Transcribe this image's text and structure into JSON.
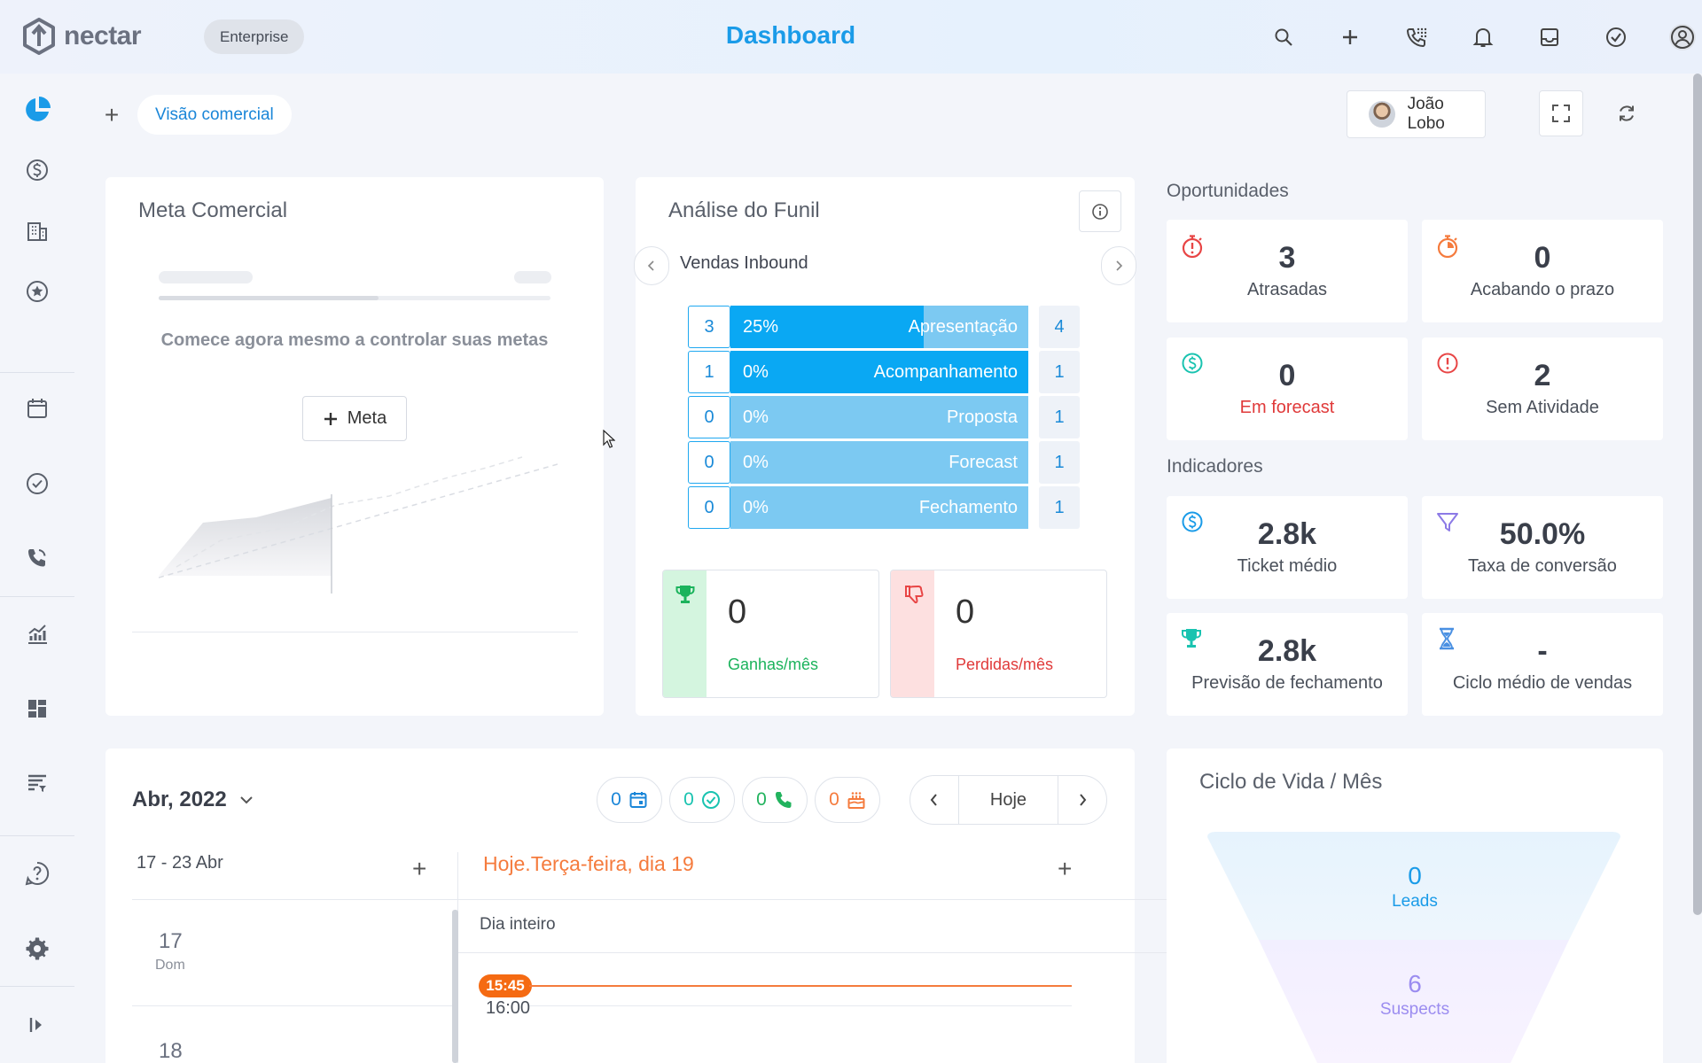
{
  "app": {
    "logo_text": "nectar",
    "plan_badge": "Enterprise",
    "page_title": "Dashboard"
  },
  "top_icons": [
    "search-icon",
    "plus-icon",
    "phone-dialer-icon",
    "bell-icon",
    "inbox-icon",
    "check-circle-icon",
    "user-circle-icon"
  ],
  "sidebar": {
    "items": [
      "pie-chart-icon",
      "dollar-icon",
      "building-icon",
      "star-icon",
      "calendar-icon",
      "check-circle-icon",
      "phone-icon",
      "trend-chart-icon",
      "dashboard-icon",
      "filter-list-icon",
      "help-icon",
      "gear-icon",
      "collapse-icon"
    ]
  },
  "tabs": {
    "active": "Visão comercial"
  },
  "user": {
    "name": "João Lobo"
  },
  "meta_comercial": {
    "title": "Meta Comercial",
    "empty_text": "Comece agora mesmo a controlar suas metas",
    "button": "Meta"
  },
  "funil": {
    "title": "Análise do Funil",
    "pipeline": "Vendas Inbound",
    "stages": [
      {
        "count": "3",
        "pct": "25%",
        "fill": 0.65,
        "name": "Apresentação",
        "total": "4"
      },
      {
        "count": "1",
        "pct": "0%",
        "fill": 1.0,
        "name": "Acompanhamento",
        "total": "1"
      },
      {
        "count": "0",
        "pct": "0%",
        "fill": 0,
        "name": "Proposta",
        "total": "1"
      },
      {
        "count": "0",
        "pct": "0%",
        "fill": 0,
        "name": "Forecast",
        "total": "1"
      },
      {
        "count": "0",
        "pct": "0%",
        "fill": 0,
        "name": "Fechamento",
        "total": "1"
      }
    ],
    "won": {
      "value": "0",
      "label": "Ganhas/mês"
    },
    "lost": {
      "value": "0",
      "label": "Perdidas/mês"
    }
  },
  "oportunidades": {
    "title": "Oportunidades",
    "items": [
      {
        "value": "3",
        "label": "Atrasadas",
        "icon": "stopwatch-alert-icon",
        "color": "#e84545"
      },
      {
        "value": "0",
        "label": "Acabando o prazo",
        "icon": "stopwatch-icon",
        "color": "#f57b3d"
      },
      {
        "value": "0",
        "label": "Em forecast",
        "icon": "dollar-circle-icon",
        "color": "#19c3b0",
        "label_color": "#e03a3a"
      },
      {
        "value": "2",
        "label": "Sem Atividade",
        "icon": "alert-circle-icon",
        "color": "#e84545"
      }
    ]
  },
  "indicadores": {
    "title": "Indicadores",
    "items": [
      {
        "value": "2.8k",
        "label": "Ticket médio",
        "icon": "dollar-circle-icon",
        "color": "#1a9be8"
      },
      {
        "value": "50.0%",
        "label": "Taxa de conversão",
        "icon": "funnel-icon",
        "color": "#8c7ae6"
      },
      {
        "value": "2.8k",
        "label": "Previsão de fechamento",
        "icon": "trophy-icon",
        "color": "#19c3b0"
      },
      {
        "value": "-",
        "label": "Ciclo médio de vendas",
        "icon": "hourglass-icon",
        "color": "#4a90e2"
      }
    ]
  },
  "calendar": {
    "month": "Abr, 2022",
    "badges": [
      {
        "value": "0",
        "icon": "calendar-icon",
        "color": "#1a86d8"
      },
      {
        "value": "0",
        "icon": "check-circle-icon",
        "color": "#19c3b0"
      },
      {
        "value": "0",
        "icon": "phone-icon",
        "color": "#22b35e"
      },
      {
        "value": "0",
        "icon": "cake-icon",
        "color": "#f57b3d"
      }
    ],
    "today_button": "Hoje",
    "week_range": "17 - 23 Abr",
    "today_label": "Hoje.Terça-feira, dia 19",
    "days": [
      {
        "num": "17",
        "name": "Dom"
      },
      {
        "num": "18",
        "name": ""
      }
    ],
    "all_day": "Dia inteiro",
    "now_time": "15:45",
    "hour_16": "16:00"
  },
  "ciclo": {
    "title": "Ciclo de Vida / Mês",
    "stages": [
      {
        "value": "0",
        "label": "Leads",
        "color": "#1a9be8"
      },
      {
        "value": "6",
        "label": "Suspects",
        "color": "#9b8cf0"
      }
    ]
  }
}
